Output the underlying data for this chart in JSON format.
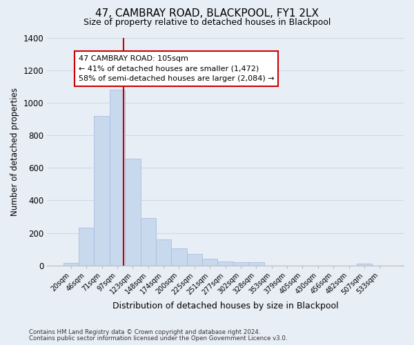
{
  "title": "47, CAMBRAY ROAD, BLACKPOOL, FY1 2LX",
  "subtitle": "Size of property relative to detached houses in Blackpool",
  "xlabel": "Distribution of detached houses by size in Blackpool",
  "ylabel": "Number of detached properties",
  "bar_labels": [
    "20sqm",
    "46sqm",
    "71sqm",
    "97sqm",
    "123sqm",
    "148sqm",
    "174sqm",
    "200sqm",
    "225sqm",
    "251sqm",
    "277sqm",
    "302sqm",
    "328sqm",
    "353sqm",
    "379sqm",
    "405sqm",
    "430sqm",
    "456sqm",
    "482sqm",
    "507sqm",
    "533sqm"
  ],
  "bar_values": [
    15,
    230,
    920,
    1080,
    655,
    290,
    160,
    105,
    70,
    40,
    25,
    20,
    18,
    0,
    0,
    0,
    0,
    0,
    0,
    13,
    0
  ],
  "bar_color": "#c8d8ed",
  "bar_edge_color": "#a8c0e0",
  "red_line_index": 3.42,
  "annotation_title": "47 CAMBRAY ROAD: 105sqm",
  "annotation_line1": "← 41% of detached houses are smaller (1,472)",
  "annotation_line2": "58% of semi-detached houses are larger (2,084) →",
  "annotation_box_facecolor": "#ffffff",
  "annotation_box_edgecolor": "#cc0000",
  "red_line_color": "#cc0000",
  "ylim": [
    0,
    1400
  ],
  "yticks": [
    0,
    200,
    400,
    600,
    800,
    1000,
    1200,
    1400
  ],
  "grid_color": "#cdd9e8",
  "bg_color": "#e8eef6",
  "title_fontsize": 11,
  "subtitle_fontsize": 9,
  "footnote1": "Contains HM Land Registry data © Crown copyright and database right 2024.",
  "footnote2": "Contains public sector information licensed under the Open Government Licence v3.0."
}
